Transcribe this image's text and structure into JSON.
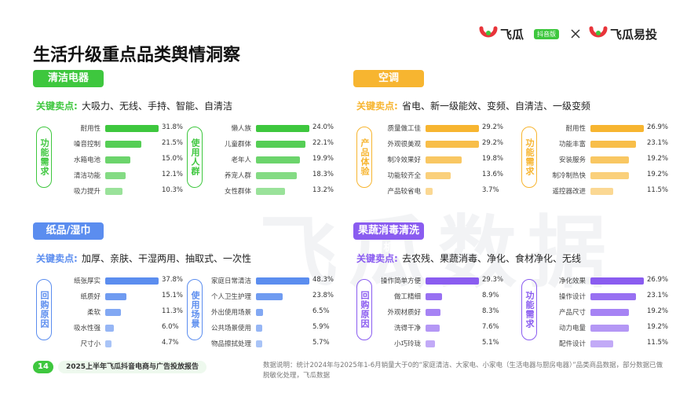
{
  "header": {
    "title": "生活升级重点品类舆情洞察",
    "brand1": "飞瓜",
    "badge": "抖音版",
    "brand2": "飞瓜易投",
    "watermark": "飞瓜数据"
  },
  "panels": [
    {
      "name": "清洁电器",
      "key_label": "关键卖点:",
      "key_points": "大吸力、无线、手持、智能、自清洁",
      "color": "#3ec73e",
      "groups": [
        {
          "title": "功能需求",
          "items": [
            {
              "label": "耐用性",
              "value": 31.8,
              "value_label": "31.8%"
            },
            {
              "label": "噪音控制",
              "value": 21.5,
              "value_label": "21.5%"
            },
            {
              "label": "水箱电池",
              "value": 15.0,
              "value_label": "15.0%"
            },
            {
              "label": "清洁功能",
              "value": 12.1,
              "value_label": "12.1%"
            },
            {
              "label": "吸力提升",
              "value": 10.3,
              "value_label": "10.3%"
            }
          ]
        },
        {
          "title": "使用人群",
          "items": [
            {
              "label": "懒人族",
              "value": 24.0,
              "value_label": "24.0%"
            },
            {
              "label": "儿童群体",
              "value": 22.1,
              "value_label": "22.1%"
            },
            {
              "label": "老年人",
              "value": 19.9,
              "value_label": "19.9%"
            },
            {
              "label": "养宠人群",
              "value": 18.3,
              "value_label": "18.3%"
            },
            {
              "label": "女性群体",
              "value": 13.2,
              "value_label": "13.2%"
            }
          ]
        }
      ]
    },
    {
      "name": "空调",
      "key_label": "关键卖点:",
      "key_points": "省电、新一级能效、变频、自清洁、一级变频",
      "color": "#f7b530",
      "groups": [
        {
          "title": "产品体验",
          "items": [
            {
              "label": "质量做工佳",
              "value": 29.2,
              "value_label": "29.2%"
            },
            {
              "label": "外观很美观",
              "value": 29.2,
              "value_label": "29.2%"
            },
            {
              "label": "制冷效果好",
              "value": 19.8,
              "value_label": "19.8%"
            },
            {
              "label": "功能较齐全",
              "value": 13.6,
              "value_label": "13.6%"
            },
            {
              "label": "产品较省电",
              "value": 3.7,
              "value_label": "3.7%"
            }
          ]
        },
        {
          "title": "功能需求",
          "items": [
            {
              "label": "耐用性",
              "value": 26.9,
              "value_label": "26.9%"
            },
            {
              "label": "功能丰富",
              "value": 23.1,
              "value_label": "23.1%"
            },
            {
              "label": "安装服务",
              "value": 19.2,
              "value_label": "19.2%"
            },
            {
              "label": "制冷制热快",
              "value": 19.2,
              "value_label": "19.2%"
            },
            {
              "label": "遥控器改进",
              "value": 11.5,
              "value_label": "11.5%"
            }
          ]
        }
      ]
    },
    {
      "name": "纸品/湿巾",
      "key_label": "关键卖点:",
      "key_points": "加厚、亲肤、干湿两用、抽取式、一次性",
      "color": "#5b8def",
      "groups": [
        {
          "title": "回购原因",
          "items": [
            {
              "label": "纸张厚实",
              "value": 37.8,
              "value_label": "37.8%"
            },
            {
              "label": "纸质好",
              "value": 15.1,
              "value_label": "15.1%"
            },
            {
              "label": "柔软",
              "value": 11.3,
              "value_label": "11.3%"
            },
            {
              "label": "吸水性强",
              "value": 6.0,
              "value_label": "6.0%"
            },
            {
              "label": "尺寸小",
              "value": 4.7,
              "value_label": "4.7%"
            }
          ]
        },
        {
          "title": "使用场景",
          "items": [
            {
              "label": "家庭日常清洁",
              "value": 48.3,
              "value_label": "48.3%"
            },
            {
              "label": "个人卫生护理",
              "value": 23.8,
              "value_label": "23.8%"
            },
            {
              "label": "外出使用场景",
              "value": 6.5,
              "value_label": "6.5%"
            },
            {
              "label": "公共场景使用",
              "value": 5.9,
              "value_label": "5.9%"
            },
            {
              "label": "物品擦拭处理",
              "value": 5.7,
              "value_label": "5.7%"
            }
          ]
        }
      ]
    },
    {
      "name": "果蔬消毒清洗机",
      "key_label": "关键卖点:",
      "key_points": "去农残、果蔬消毒、净化、食材净化、无线",
      "color": "#8a5cf0",
      "groups": [
        {
          "title": "回购原因",
          "items": [
            {
              "label": "操作简单方便",
              "value": 29.3,
              "value_label": "29.3%"
            },
            {
              "label": "做工精细",
              "value": 8.9,
              "value_label": "8.9%"
            },
            {
              "label": "外观材质好",
              "value": 8.3,
              "value_label": "8.3%"
            },
            {
              "label": "洗得干净",
              "value": 7.6,
              "value_label": "7.6%"
            },
            {
              "label": "小巧玲珑",
              "value": 5.1,
              "value_label": "5.1%"
            }
          ]
        },
        {
          "title": "功能需求",
          "items": [
            {
              "label": "净化效果",
              "value": 26.9,
              "value_label": "26.9%"
            },
            {
              "label": "操作设计",
              "value": 23.1,
              "value_label": "23.1%"
            },
            {
              "label": "产品尺寸",
              "value": 19.2,
              "value_label": "19.2%"
            },
            {
              "label": "动力电量",
              "value": 19.2,
              "value_label": "19.2%"
            },
            {
              "label": "配件设计",
              "value": 11.5,
              "value_label": "11.5%"
            }
          ]
        }
      ]
    }
  ],
  "footer": {
    "page": "14",
    "report": "2025上半年飞瓜抖音电商与广告投放报告",
    "note": "数据说明：统计2024年与2025年1-6月销量大于0的“家庭清洁、大家电、小家电（生活电器与厨房电器）”品类商品数据，部分数据已做脱敏化处理，飞瓜数据"
  }
}
